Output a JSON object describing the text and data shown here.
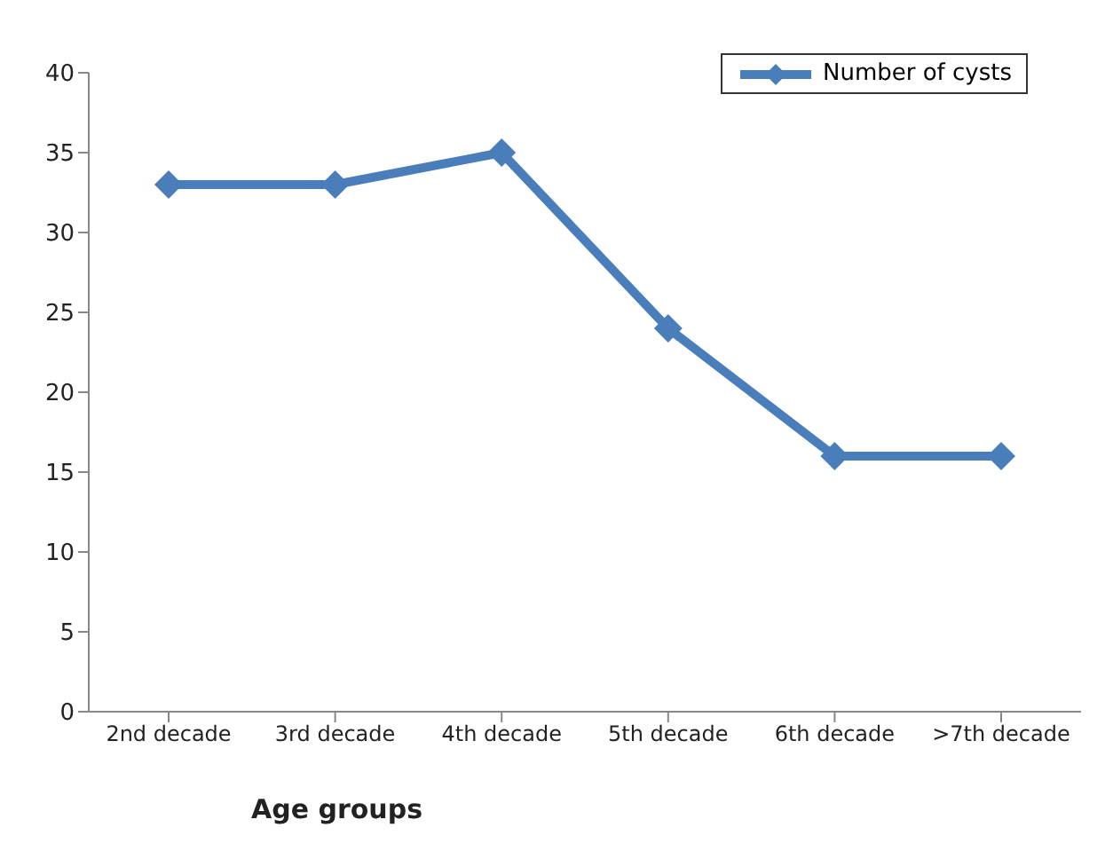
{
  "chart_data": {
    "type": "line",
    "xlabel": "Age groups",
    "categories": [
      "2nd decade",
      "3rd decade",
      "4th decade",
      "5th decade",
      "6th decade",
      ">7th decade"
    ],
    "series": [
      {
        "name": "Number of cysts",
        "color": "#4a7ebb",
        "values": [
          33,
          33,
          35,
          24,
          16,
          16
        ]
      }
    ],
    "ylim": [
      0,
      40
    ],
    "yticks": [
      0,
      5,
      10,
      15,
      20,
      25,
      30,
      35,
      40
    ],
    "grid": false,
    "legend": "top right",
    "marker": "diamond",
    "line_style": "solid"
  }
}
